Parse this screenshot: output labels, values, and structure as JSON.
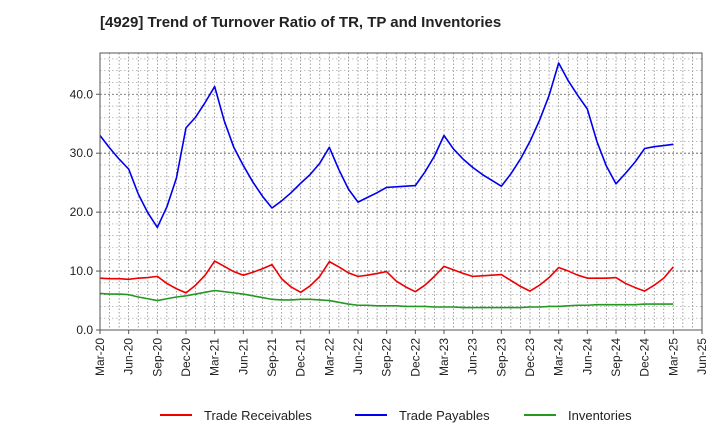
{
  "chart_data": {
    "type": "line",
    "title": "[4929]  Trend of Turnover Ratio of TR, TP and Inventories",
    "xlabel": "",
    "ylabel": "",
    "ylim": [
      0,
      47
    ],
    "yticks": [
      "0.0",
      "10.0",
      "20.0",
      "30.0",
      "40.0"
    ],
    "ytick_values": [
      0,
      10,
      20,
      30,
      40
    ],
    "xticks": [
      "Mar-20",
      "Jun-20",
      "Sep-20",
      "Dec-20",
      "Mar-21",
      "Jun-21",
      "Sep-21",
      "Dec-21",
      "Mar-22",
      "Jun-22",
      "Sep-22",
      "Dec-22",
      "Mar-23",
      "Jun-23",
      "Sep-23",
      "Dec-23",
      "Mar-24",
      "Jun-24",
      "Sep-24",
      "Dec-24",
      "Mar-25",
      "Jun-25"
    ],
    "x": [
      "2020-03",
      "2020-04",
      "2020-05",
      "2020-06",
      "2020-07",
      "2020-08",
      "2020-09",
      "2020-10",
      "2020-11",
      "2020-12",
      "2021-01",
      "2021-02",
      "2021-03",
      "2021-04",
      "2021-05",
      "2021-06",
      "2021-07",
      "2021-08",
      "2021-09",
      "2021-10",
      "2021-11",
      "2021-12",
      "2022-01",
      "2022-02",
      "2022-03",
      "2022-04",
      "2022-05",
      "2022-06",
      "2022-07",
      "2022-08",
      "2022-09",
      "2022-10",
      "2022-11",
      "2022-12",
      "2023-01",
      "2023-02",
      "2023-03",
      "2023-04",
      "2023-05",
      "2023-06",
      "2023-07",
      "2023-08",
      "2023-09",
      "2023-10",
      "2023-11",
      "2023-12",
      "2024-01",
      "2024-02",
      "2024-03",
      "2024-04",
      "2024-05",
      "2024-06",
      "2024-07",
      "2024-08",
      "2024-09",
      "2024-10",
      "2024-11",
      "2024-12",
      "2025-01",
      "2025-02",
      "2025-03"
    ],
    "grid": true,
    "legend": "bottom",
    "series": [
      {
        "name": "Trade Receivables",
        "color": "#ee0000",
        "values": [
          8.8,
          8.7,
          8.7,
          8.6,
          8.8,
          8.9,
          9.1,
          7.9,
          7.0,
          6.3,
          7.6,
          9.3,
          11.7,
          10.8,
          9.9,
          9.3,
          9.8,
          10.4,
          11.1,
          8.7,
          7.3,
          6.4,
          7.5,
          9.1,
          11.6,
          10.7,
          9.7,
          9.1,
          9.3,
          9.6,
          9.9,
          8.3,
          7.3,
          6.5,
          7.6,
          9.1,
          10.8,
          10.2,
          9.6,
          9.1,
          9.2,
          9.3,
          9.4,
          8.4,
          7.4,
          6.6,
          7.6,
          8.9,
          10.6,
          10.0,
          9.3,
          8.8,
          8.8,
          8.8,
          8.9,
          7.9,
          7.2,
          6.6,
          7.6,
          8.8,
          10.7
        ]
      },
      {
        "name": "Trade Payables",
        "color": "#0000ee",
        "values": [
          33.0,
          30.9,
          29.0,
          27.3,
          23.1,
          19.9,
          17.4,
          20.9,
          25.8,
          34.3,
          36.1,
          38.6,
          41.3,
          35.5,
          31.0,
          27.9,
          25.1,
          22.7,
          20.7,
          21.9,
          23.3,
          24.9,
          26.4,
          28.3,
          31.0,
          27.2,
          23.9,
          21.7,
          22.5,
          23.3,
          24.2,
          24.3,
          24.4,
          24.5,
          26.8,
          29.5,
          33.0,
          30.7,
          29.0,
          27.6,
          26.4,
          25.4,
          24.4,
          26.5,
          29.0,
          32.0,
          35.6,
          39.8,
          45.3,
          42.3,
          39.8,
          37.5,
          32.0,
          27.8,
          24.8,
          26.6,
          28.5,
          30.8,
          31.1,
          31.3,
          31.5
        ]
      },
      {
        "name": "Inventories",
        "color": "#229922",
        "values": [
          6.2,
          6.1,
          6.1,
          6.0,
          5.6,
          5.3,
          5.0,
          5.3,
          5.6,
          5.8,
          6.1,
          6.4,
          6.7,
          6.5,
          6.3,
          6.1,
          5.8,
          5.5,
          5.2,
          5.1,
          5.1,
          5.2,
          5.2,
          5.1,
          5.0,
          4.7,
          4.4,
          4.2,
          4.2,
          4.1,
          4.1,
          4.1,
          4.0,
          4.0,
          4.0,
          3.9,
          3.9,
          3.9,
          3.8,
          3.8,
          3.8,
          3.8,
          3.8,
          3.8,
          3.8,
          3.9,
          3.9,
          4.0,
          4.0,
          4.1,
          4.2,
          4.2,
          4.3,
          4.3,
          4.3,
          4.3,
          4.3,
          4.4,
          4.4,
          4.4,
          4.4
        ]
      }
    ]
  }
}
